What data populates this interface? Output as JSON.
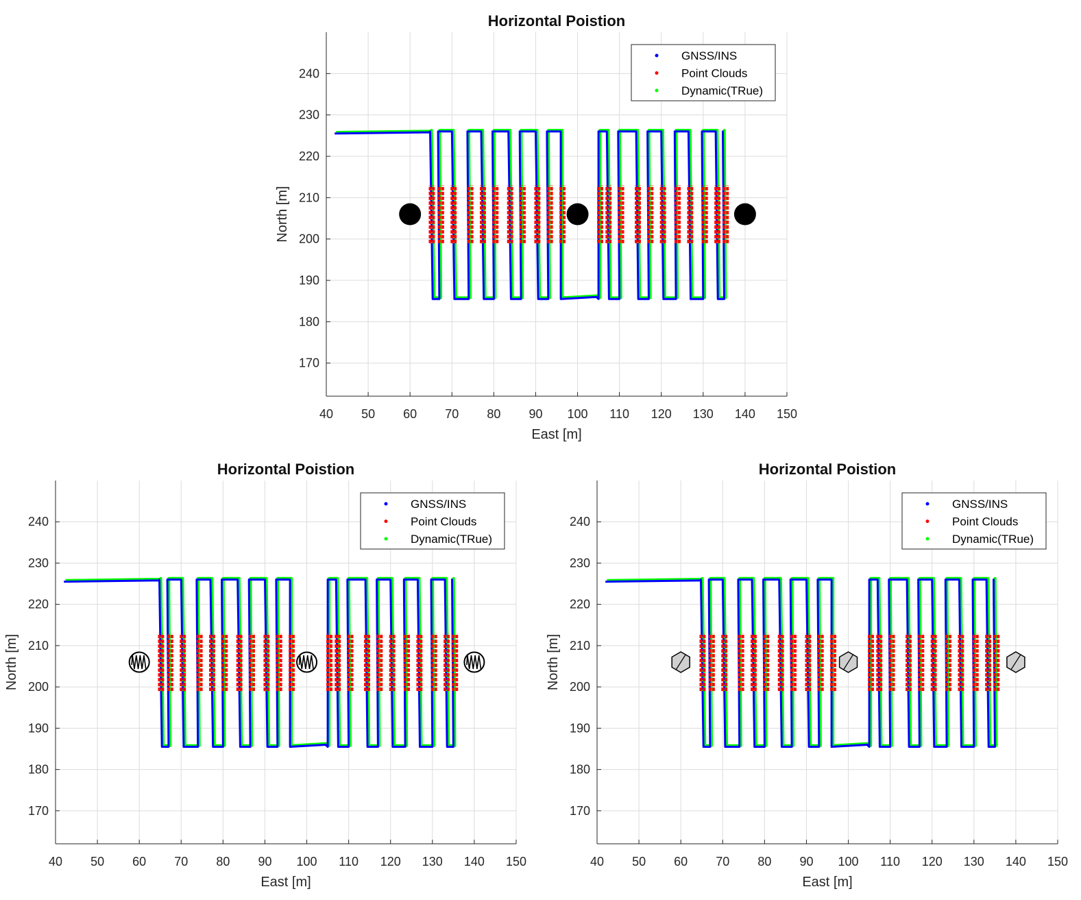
{
  "chart_data": [
    {
      "type": "line",
      "title": "Horizontal Poistion",
      "xlabel": "East [m]",
      "ylabel": "North [m]",
      "xlim": [
        40,
        150
      ],
      "ylim": [
        162,
        250
      ],
      "xticks": [
        40,
        50,
        60,
        70,
        80,
        90,
        100,
        110,
        120,
        130,
        140,
        150
      ],
      "yticks": [
        170,
        180,
        190,
        200,
        210,
        220,
        230,
        240
      ],
      "grid": true,
      "legend_position": "top-right",
      "obstacle_marker": "solid-circle",
      "series": [
        {
          "name": "GNSS/INS",
          "color": "#0000ff"
        },
        {
          "name": "Point Clouds",
          "color": "#ff0000"
        },
        {
          "name": "Dynamic(TRue)",
          "color": "#00ff00"
        }
      ],
      "trajectory": {
        "start": [
          42,
          225.5
        ],
        "turn_x": 64.8,
        "top_y": 226,
        "bottom_y": 185.5,
        "block1_x": [
          64.8,
          67,
          70,
          74,
          77,
          80,
          83.5,
          86.5,
          90,
          93,
          96
        ],
        "gap_end_x": 105,
        "block2_x": [
          105,
          107,
          110,
          114,
          117,
          120,
          123.5,
          126.5,
          130,
          133,
          135
        ],
        "point_cloud_y": [
          199,
          213
        ]
      },
      "obstacles": [
        [
          60,
          206
        ],
        [
          100,
          206
        ],
        [
          140,
          206
        ]
      ]
    },
    {
      "type": "line",
      "title": "Horizontal Poistion",
      "xlabel": "East [m]",
      "ylabel": "North [m]",
      "xlim": [
        40,
        150
      ],
      "ylim": [
        162,
        250
      ],
      "xticks": [
        40,
        50,
        60,
        70,
        80,
        90,
        100,
        110,
        120,
        130,
        140,
        150
      ],
      "yticks": [
        170,
        180,
        190,
        200,
        210,
        220,
        230,
        240
      ],
      "grid": true,
      "legend_position": "top-right",
      "obstacle_marker": "hatched-circle",
      "series": [
        {
          "name": "GNSS/INS",
          "color": "#0000ff"
        },
        {
          "name": "Point Clouds",
          "color": "#ff0000"
        },
        {
          "name": "Dynamic(TRue)",
          "color": "#00ff00"
        }
      ],
      "trajectory": {
        "start": [
          42,
          225.5
        ],
        "turn_x": 64.8,
        "top_y": 226,
        "bottom_y": 185.5,
        "block1_x": [
          64.8,
          67,
          70,
          74,
          77,
          80,
          83.5,
          86.5,
          90,
          93,
          96
        ],
        "gap_end_x": 105,
        "block2_x": [
          105,
          107,
          110,
          114,
          117,
          120,
          123.5,
          126.5,
          130,
          133,
          135
        ],
        "point_cloud_y": [
          199,
          213
        ]
      },
      "obstacles": [
        [
          60,
          206
        ],
        [
          100,
          206
        ],
        [
          140,
          206
        ]
      ]
    },
    {
      "type": "line",
      "title": "Horizontal Poistion",
      "xlabel": "East [m]",
      "ylabel": "North [m]",
      "xlim": [
        40,
        150
      ],
      "ylim": [
        162,
        250
      ],
      "xticks": [
        40,
        50,
        60,
        70,
        80,
        90,
        100,
        110,
        120,
        130,
        140,
        150
      ],
      "yticks": [
        170,
        180,
        190,
        200,
        210,
        220,
        230,
        240
      ],
      "grid": true,
      "legend_position": "top-right",
      "obstacle_marker": "gray-hexagon",
      "series": [
        {
          "name": "GNSS/INS",
          "color": "#0000ff"
        },
        {
          "name": "Point Clouds",
          "color": "#ff0000"
        },
        {
          "name": "Dynamic(TRue)",
          "color": "#00ff00"
        }
      ],
      "trajectory": {
        "start": [
          42,
          225.5
        ],
        "turn_x": 64.8,
        "top_y": 226,
        "bottom_y": 185.5,
        "block1_x": [
          64.8,
          67,
          70,
          74,
          77,
          80,
          83.5,
          86.5,
          90,
          93,
          96
        ],
        "gap_end_x": 105,
        "block2_x": [
          105,
          107,
          110,
          114,
          117,
          120,
          123.5,
          126.5,
          130,
          133,
          135
        ],
        "point_cloud_y": [
          199,
          213
        ]
      },
      "obstacles": [
        [
          60,
          206
        ],
        [
          100,
          206
        ],
        [
          140,
          206
        ]
      ]
    }
  ]
}
